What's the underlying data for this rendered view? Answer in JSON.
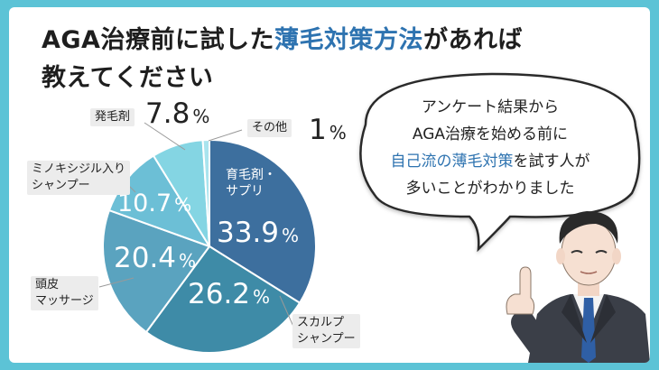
{
  "title": {
    "line1_pre": "AGA治療前に試した",
    "line1_highlight": "薄毛対策方法",
    "line1_post": "があれば",
    "line2": "教えてください"
  },
  "bubble": {
    "line1": "アンケート結果から",
    "line2": "AGA治療を始める前に",
    "line3_highlight": "自己流の薄毛対策",
    "line3_post": "を試す人が",
    "line4": "多いことがわかりました"
  },
  "chart_data": {
    "type": "pie",
    "start": "top",
    "direction": "clockwise",
    "percent_sign": "%",
    "slices": [
      {
        "label": "育毛剤・サプリ",
        "label_lines": [
          "育毛剤・",
          "サプリ"
        ],
        "value": 33.9,
        "value_text": "33.9",
        "color": "#3d6f9e",
        "label_inside": true
      },
      {
        "label": "スカルプシャンプー",
        "label_lines": [
          "スカルプ",
          "シャンプー"
        ],
        "value": 26.2,
        "value_text": "26.2",
        "color": "#3e8ba7",
        "label_inside": false
      },
      {
        "label": "頭皮マッサージ",
        "label_lines": [
          "頭皮",
          "マッサージ"
        ],
        "value": 20.4,
        "value_text": "20.4",
        "color": "#5aa3bf",
        "label_inside": false
      },
      {
        "label": "ミノキシジル入りシャンプー",
        "label_lines": [
          "ミノキシジル入り",
          "シャンプー"
        ],
        "value": 10.7,
        "value_text": "10.7",
        "color": "#6cbfd6",
        "label_inside": false
      },
      {
        "label": "発毛剤",
        "label_lines": [
          "発毛剤"
        ],
        "value": 7.8,
        "value_text": "7.8",
        "color": "#84d5e3",
        "label_inside": false
      },
      {
        "label": "その他",
        "label_lines": [
          "その他"
        ],
        "value": 1,
        "value_text": "1",
        "color": "#a9e4ee",
        "label_inside": false
      }
    ]
  },
  "colors": {
    "background": "#5cc3d6",
    "card": "#ffffff",
    "highlight": "#2e73b0",
    "label_box": "#ececec"
  },
  "icons": [
    "speech-bubble",
    "businessman-pointing-up"
  ]
}
